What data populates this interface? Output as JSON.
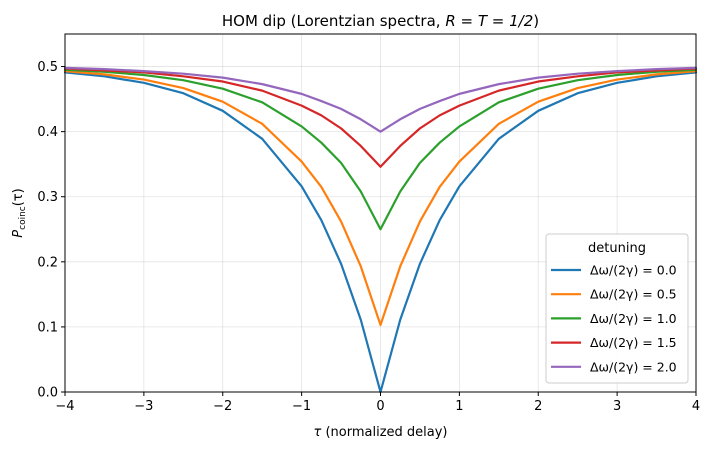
{
  "chart_data": {
    "type": "line",
    "title": {
      "prefix": "HOM dip (Lorentzian spectra, ",
      "math": "R = T = 1/2",
      "suffix": ")"
    },
    "xlabel": {
      "symbol": "τ",
      "text": " (normalized delay)"
    },
    "ylabel": {
      "symbol": "P",
      "subscript": "coinc",
      "arg": "(τ)"
    },
    "xlim": [
      -4,
      4
    ],
    "ylim": [
      0,
      0.55
    ],
    "xticks": [
      -4,
      -3,
      -2,
      -1,
      0,
      1,
      2,
      3,
      4
    ],
    "xtick_labels": [
      "−4",
      "−3",
      "−2",
      "−1",
      "0",
      "1",
      "2",
      "3",
      "4"
    ],
    "yticks": [
      0.0,
      0.1,
      0.2,
      0.3,
      0.4,
      0.5
    ],
    "ytick_labels": [
      "0.0",
      "0.1",
      "0.2",
      "0.3",
      "0.4",
      "0.5"
    ],
    "grid": true,
    "legend": {
      "title": "detuning",
      "placement": "lower-right"
    },
    "x": [
      -4.0,
      -3.5,
      -3.0,
      -2.5,
      -2.0,
      -1.5,
      -1.0,
      -0.75,
      -0.5,
      -0.25,
      0.0,
      0.25,
      0.5,
      0.75,
      1.0,
      1.5,
      2.0,
      2.5,
      3.0,
      3.5,
      4.0
    ],
    "series": [
      {
        "name": "Δω/(2γ) = 0.0",
        "color": "#1f77b4",
        "values": [
          0.491,
          0.485,
          0.475,
          0.459,
          0.432,
          0.389,
          0.316,
          0.264,
          0.197,
          0.111,
          0.0,
          0.111,
          0.197,
          0.264,
          0.316,
          0.389,
          0.432,
          0.459,
          0.475,
          0.485,
          0.491
        ]
      },
      {
        "name": "Δω/(2γ) = 0.5",
        "color": "#ff7f0e",
        "values": [
          0.493,
          0.488,
          0.48,
          0.467,
          0.446,
          0.412,
          0.354,
          0.315,
          0.262,
          0.193,
          0.103,
          0.193,
          0.262,
          0.315,
          0.354,
          0.412,
          0.446,
          0.467,
          0.48,
          0.488,
          0.493
        ]
      },
      {
        "name": "Δω/(2γ) = 1.0",
        "color": "#2ca02c",
        "values": [
          0.495,
          0.492,
          0.487,
          0.479,
          0.466,
          0.445,
          0.408,
          0.383,
          0.352,
          0.308,
          0.25,
          0.308,
          0.352,
          0.383,
          0.408,
          0.445,
          0.466,
          0.479,
          0.487,
          0.492,
          0.495
        ]
      },
      {
        "name": "Δω/(2γ) = 1.5",
        "color": "#d62728",
        "values": [
          0.497,
          0.494,
          0.491,
          0.485,
          0.477,
          0.463,
          0.44,
          0.425,
          0.405,
          0.378,
          0.346,
          0.378,
          0.405,
          0.425,
          0.44,
          0.463,
          0.477,
          0.485,
          0.491,
          0.494,
          0.497
        ]
      },
      {
        "name": "Δω/(2γ) = 2.0",
        "color": "#9467bd",
        "values": [
          0.498,
          0.496,
          0.493,
          0.489,
          0.483,
          0.473,
          0.458,
          0.447,
          0.435,
          0.419,
          0.4,
          0.419,
          0.435,
          0.447,
          0.458,
          0.473,
          0.483,
          0.489,
          0.493,
          0.496,
          0.498
        ]
      }
    ]
  }
}
